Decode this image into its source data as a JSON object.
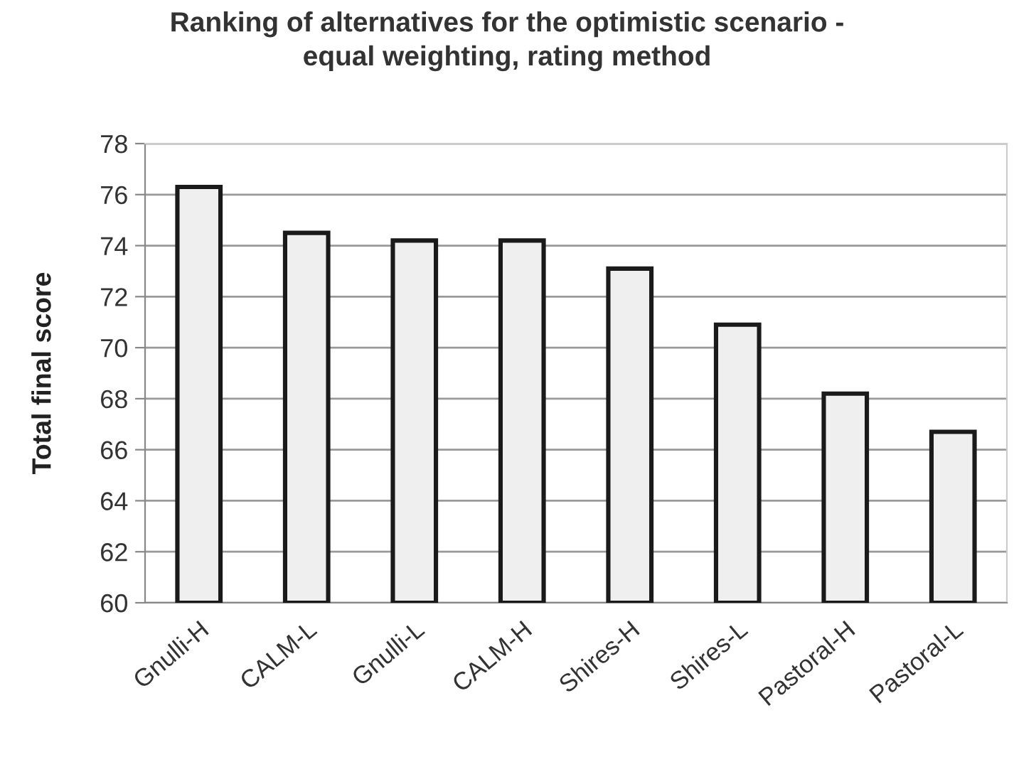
{
  "chart_data": {
    "type": "bar",
    "title": "Ranking of alternatives for the optimistic scenario -\nequal weighting, rating method",
    "ylabel": "Total final score",
    "categories": [
      "Gnulli-H",
      "CALM-L",
      "Gnulli-L",
      "CALM-H",
      "Shires-H",
      "Shires-L",
      "Pastoral-H",
      "Pastoral-L"
    ],
    "values": [
      76.3,
      74.5,
      74.2,
      74.2,
      73.1,
      70.9,
      68.2,
      66.7
    ],
    "color": "#efefef",
    "ylim": [
      60,
      78
    ],
    "yticks": [
      60,
      62,
      64,
      66,
      68,
      70,
      72,
      74,
      76,
      78
    ],
    "grid": "y",
    "legend": false
  }
}
